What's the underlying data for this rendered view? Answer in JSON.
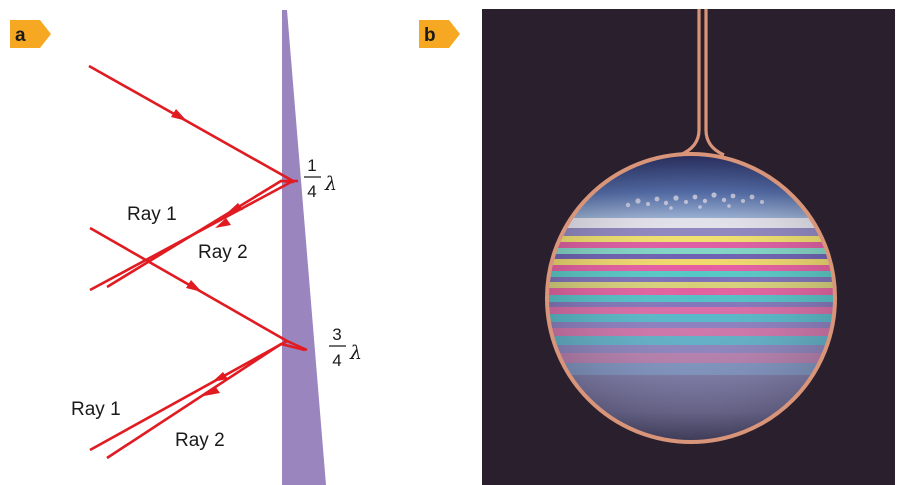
{
  "panel_a": {
    "tag": "a",
    "ray1_label_top": "Ray 1",
    "ray2_label_top": "Ray 2",
    "ray1_label_bottom": "Ray 1",
    "ray2_label_bottom": "Ray 2",
    "thickness_top": {
      "num": "1",
      "den": "4",
      "symbol": "λ"
    },
    "thickness_bottom": {
      "num": "3",
      "den": "4",
      "symbol": "λ"
    }
  },
  "panel_b": {
    "tag": "b"
  },
  "colors": {
    "ray": "#e11b22",
    "wedge": "#9a85be",
    "tab": "#f7a823",
    "photo_bg": "#2a1f2c",
    "wire": "#d9957a"
  }
}
